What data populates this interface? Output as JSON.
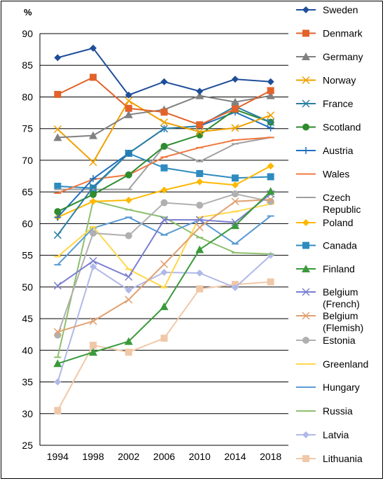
{
  "chart_data": {
    "type": "line",
    "unit_label": "%",
    "categories": [
      "1994",
      "1998",
      "2002",
      "2006",
      "2010",
      "2014",
      "2018"
    ],
    "ylim": [
      25,
      90
    ],
    "yticks": [
      "25",
      "30",
      "35",
      "40",
      "45",
      "50",
      "55",
      "60",
      "65",
      "70",
      "75",
      "80",
      "85",
      "90"
    ],
    "grid": true,
    "legend_position": "right",
    "series": [
      {
        "name": "Sweden",
        "color": "#1f4e99",
        "marker": "diamond",
        "values": [
          86.2,
          87.7,
          80.3,
          82.4,
          80.9,
          82.8,
          82.4
        ]
      },
      {
        "name": "Denmark",
        "color": "#e2622a",
        "marker": "square",
        "values": [
          80.4,
          83.1,
          78.2,
          77.6,
          75.6,
          78.1,
          81.0
        ]
      },
      {
        "name": "Germany",
        "color": "#808080",
        "marker": "triangle",
        "values": [
          73.6,
          73.9,
          77.2,
          78.0,
          80.2,
          79.2,
          80.2
        ]
      },
      {
        "name": "Norway",
        "color": "#f0a000",
        "marker": "x",
        "values": [
          74.9,
          69.7,
          79.4,
          76.0,
          74.5,
          75.1,
          77.1
        ]
      },
      {
        "name": "France",
        "color": "#2b7fa3",
        "marker": "x",
        "values": [
          58.2,
          65.8,
          71.1,
          75.0,
          75.4,
          78.5,
          76.0
        ]
      },
      {
        "name": "Scotland",
        "color": "#2e8b2e",
        "marker": "circle",
        "values": [
          61.9,
          64.6,
          67.7,
          72.2,
          74.0,
          78.0,
          76.0
        ]
      },
      {
        "name": "Austria",
        "color": "#1f6fc0",
        "marker": "plus",
        "values": [
          61.0,
          67.1,
          71.1,
          75.0,
          75.4,
          77.6,
          75.1
        ]
      },
      {
        "name": "Wales",
        "color": "#f07840",
        "marker": "dash",
        "values": [
          64.8,
          67.0,
          67.7,
          70.5,
          72.0,
          73.2,
          73.6
        ]
      },
      {
        "name": "Czech Republic",
        "color": "#a0a0a0",
        "marker": "dash",
        "values": [
          65.4,
          65.4,
          65.4,
          72.2,
          69.8,
          72.6,
          73.6
        ]
      },
      {
        "name": "Poland",
        "color": "#ffb800",
        "marker": "diamond",
        "values": [
          61.0,
          63.5,
          63.7,
          65.3,
          66.6,
          66.1,
          69.1
        ]
      },
      {
        "name": "Canada",
        "color": "#2e8bc0",
        "marker": "square",
        "values": [
          65.9,
          65.6,
          71.1,
          68.8,
          67.9,
          67.2,
          67.4
        ]
      },
      {
        "name": "Finland",
        "color": "#3a9a3a",
        "marker": "triangle",
        "values": [
          37.9,
          39.7,
          41.4,
          46.9,
          55.9,
          59.7,
          65.1
        ]
      },
      {
        "name": "Belgium (French)",
        "color": "#7b7fd0",
        "marker": "x",
        "values": [
          50.2,
          54.1,
          51.6,
          60.6,
          60.6,
          60.2,
          64.7
        ]
      },
      {
        "name": "Belgium (Flemish)",
        "color": "#e0a070",
        "marker": "x",
        "values": [
          42.9,
          44.6,
          48.0,
          53.6,
          59.4,
          63.5,
          63.8
        ]
      },
      {
        "name": "Estonia",
        "color": "#b0b0b0",
        "marker": "circle",
        "values": [
          42.4,
          58.5,
          58.1,
          63.3,
          62.9,
          64.7,
          63.5
        ]
      },
      {
        "name": "Greenland",
        "color": "#ffd84a",
        "marker": "dash",
        "values": [
          54.8,
          59.5,
          52.8,
          49.9,
          61.0,
          61.9,
          63.1
        ]
      },
      {
        "name": "Hungary",
        "color": "#5b9bd5",
        "marker": "dash",
        "values": [
          53.5,
          59.3,
          61.0,
          58.2,
          60.6,
          56.8,
          61.2
        ]
      },
      {
        "name": "Russia",
        "color": "#8cbf6e",
        "marker": "dash",
        "values": [
          38.9,
          63.6,
          62.2,
          61.0,
          57.8,
          55.4,
          55.2
        ]
      },
      {
        "name": "Latvia",
        "color": "#b0b8e8",
        "marker": "diamond",
        "values": [
          35.0,
          53.2,
          49.5,
          52.3,
          52.2,
          49.9,
          55.0
        ]
      },
      {
        "name": "Lithuania",
        "color": "#f0c8a8",
        "marker": "square",
        "values": [
          30.5,
          40.8,
          39.7,
          41.9,
          49.7,
          50.4,
          50.8
        ]
      }
    ]
  }
}
